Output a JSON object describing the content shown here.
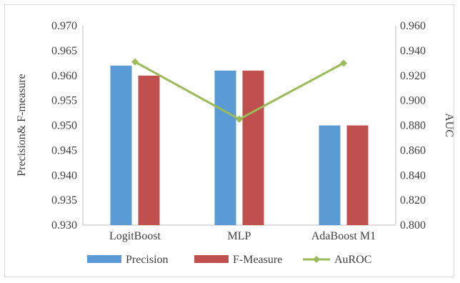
{
  "chart_data": {
    "type": "bar",
    "title": "",
    "categories": [
      "LogitBoost",
      "MLP",
      "AdaBoost M1"
    ],
    "series": [
      {
        "name": "Precision",
        "type": "bar",
        "axis": "left",
        "color": "#5b9bd5",
        "values": [
          0.962,
          0.961,
          0.95
        ]
      },
      {
        "name": "F-Measure",
        "type": "bar",
        "axis": "left",
        "color": "#c0504d",
        "values": [
          0.96,
          0.961,
          0.95
        ]
      },
      {
        "name": "AuROC",
        "type": "line",
        "axis": "right",
        "color": "#9bbb59",
        "values": [
          0.931,
          0.885,
          0.93
        ]
      }
    ],
    "ylabel": "Precision& F-measure",
    "y2label": "AUC",
    "ylim": [
      0.93,
      0.97
    ],
    "y2lim": [
      0.8,
      0.96
    ],
    "yticks": [
      "0.930",
      "0.935",
      "0.940",
      "0.945",
      "0.950",
      "0.955",
      "0.960",
      "0.965",
      "0.970"
    ],
    "y2ticks": [
      "0.800",
      "0.820",
      "0.840",
      "0.860",
      "0.880",
      "0.900",
      "0.920",
      "0.940",
      "0.960"
    ],
    "legend_position": "bottom",
    "grid": false
  }
}
